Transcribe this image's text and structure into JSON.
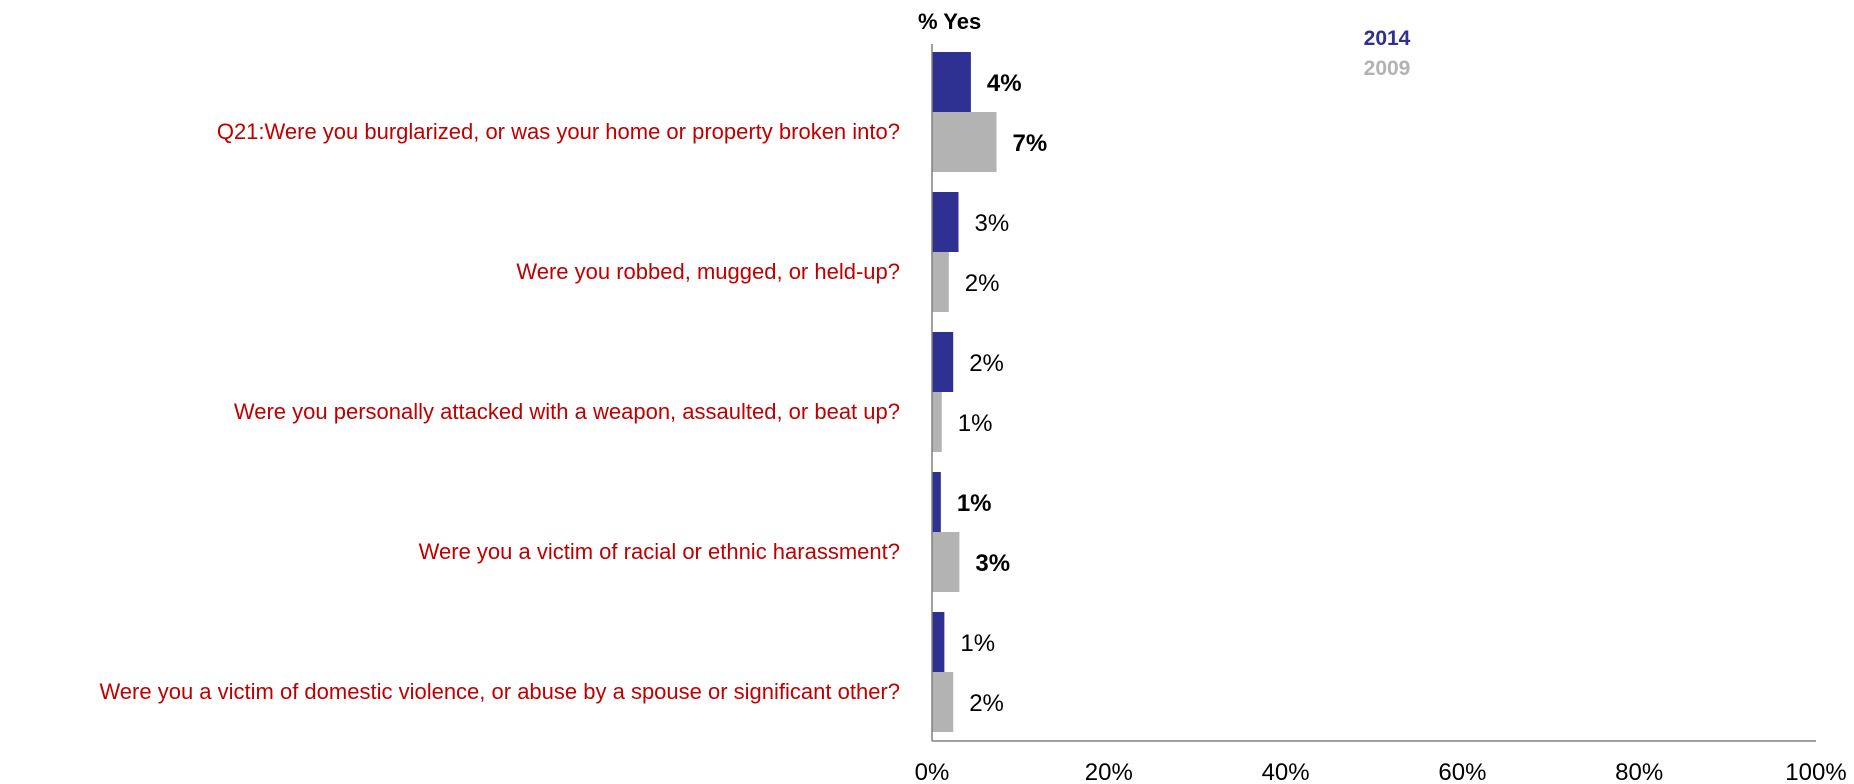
{
  "chart_data": {
    "type": "bar",
    "orientation": "horizontal",
    "axis_title": "% Yes",
    "categories": [
      "Q21:Were you burglarized, or was your home or property broken into?",
      "Were you robbed, mugged, or held-up?",
      "Were you personally attacked with a weapon, assaulted, or beat up?",
      "Were you a victim of racial or ethnic harassment?",
      "Were you a victim of domestic violence, or abuse by a spouse or significant other?"
    ],
    "series": [
      {
        "name": "2014",
        "color": "#2e3192",
        "values": [
          4.4,
          3.0,
          2.4,
          1.0,
          1.4
        ],
        "labels": [
          "4%",
          "3%",
          "2%",
          "1%",
          "1%"
        ],
        "label_bold": [
          true,
          false,
          false,
          true,
          false
        ]
      },
      {
        "name": "2009",
        "color": "#b3b3b3",
        "values": [
          7.3,
          1.9,
          1.1,
          3.1,
          2.4
        ],
        "labels": [
          "7%",
          "2%",
          "1%",
          "3%",
          "2%"
        ],
        "label_bold": [
          true,
          false,
          false,
          true,
          false
        ]
      }
    ],
    "xlim": [
      0,
      100
    ],
    "ticks": [
      0,
      20,
      40,
      60,
      80,
      100
    ],
    "tick_labels": [
      "0%",
      "20%",
      "40%",
      "60%",
      "80%",
      "100%"
    ],
    "label_color": "#c00000",
    "grid": false,
    "legend_position": "top-center"
  }
}
